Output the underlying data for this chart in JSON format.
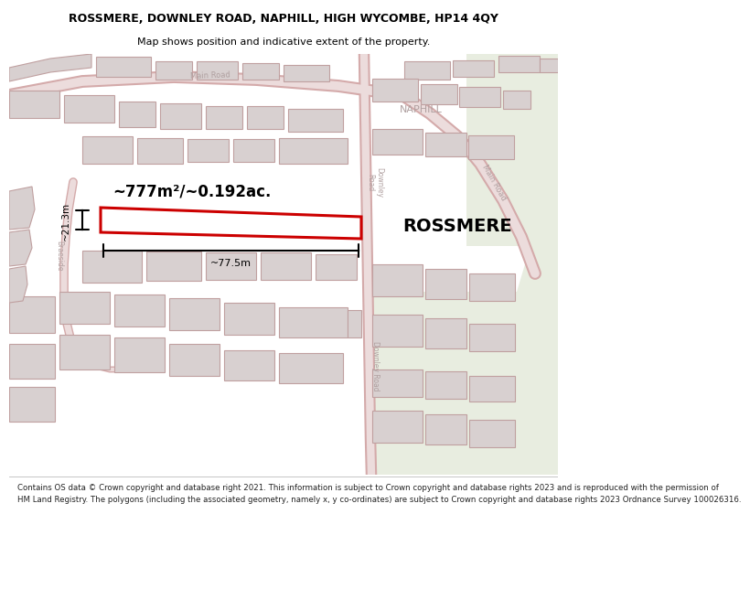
{
  "title": "ROSSMERE, DOWNLEY ROAD, NAPHILL, HIGH WYCOMBE, HP14 4QY",
  "subtitle": "Map shows position and indicative extent of the property.",
  "footer_line1": "Contains OS data © Crown copyright and database right 2021. This information is subject to Crown copyright and database rights 2023 and is reproduced with the permission of",
  "footer_line2": "HM Land Registry. The polygons (including the associated geometry, namely x, y co-ordinates) are subject to Crown copyright and database rights 2023 Ordnance Survey 100026316.",
  "property_name": "ROSSMERE",
  "area_label": "~777m²/~0.192ac.",
  "width_label": "~77.5m",
  "height_label": "~21.3m",
  "map_bg": "#f7f2f2",
  "road_fill": "#ecdcdc",
  "road_edge": "#d4aaaa",
  "block_fill": "#d8d0d0",
  "block_edge": "#c0a0a0",
  "highlight_color": "#cc0000",
  "green_fill": "#e8ede0",
  "road_text": "#b0a0a0",
  "place_text": "#b0a0a0",
  "title_fs": 9,
  "subtitle_fs": 8,
  "footer_fs": 6.2
}
